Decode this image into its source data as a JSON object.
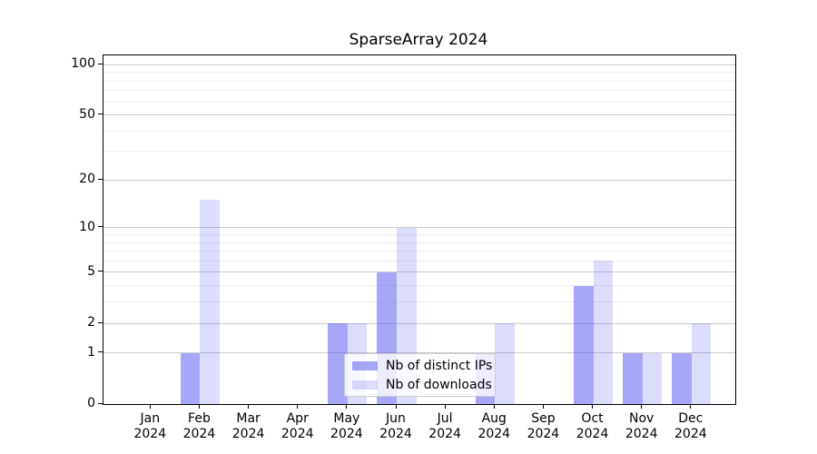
{
  "chart_data": {
    "type": "bar",
    "title": "SparseArray 2024",
    "categories": [
      "Jan 2024",
      "Feb 2024",
      "Mar 2024",
      "Apr 2024",
      "May 2024",
      "Jun 2024",
      "Jul 2024",
      "Aug 2024",
      "Sep 2024",
      "Oct 2024",
      "Nov 2024",
      "Dec 2024"
    ],
    "series": [
      {
        "name": "Nb of distinct IPs",
        "color": "rgba(80,80,240,0.5)",
        "values": [
          0,
          1,
          0,
          0,
          2,
          5,
          0,
          1,
          0,
          4,
          1,
          1
        ]
      },
      {
        "name": "Nb of downloads",
        "color": "rgba(80,80,240,0.2)",
        "values": [
          0,
          15,
          0,
          0,
          2,
          10,
          0,
          2,
          0,
          6,
          1,
          2
        ]
      }
    ],
    "y_axis": {
      "scale": "log1p",
      "major_ticks": [
        0,
        1,
        2,
        5,
        10,
        20,
        50,
        100
      ],
      "minor_ticks": [
        3,
        4,
        6,
        7,
        8,
        9,
        30,
        40,
        60,
        70,
        80,
        90
      ],
      "ylim": [
        0,
        113
      ]
    },
    "x_axis": {
      "label_lines": 2
    },
    "grid": true,
    "legend": {
      "position": "lower center",
      "entries": [
        "Nb of distinct IPs",
        "Nb of downloads"
      ]
    },
    "colors": {
      "grid_major": "#cccccc",
      "grid_minor": "#efefef",
      "axis": "#000000",
      "background": "#ffffff"
    }
  }
}
